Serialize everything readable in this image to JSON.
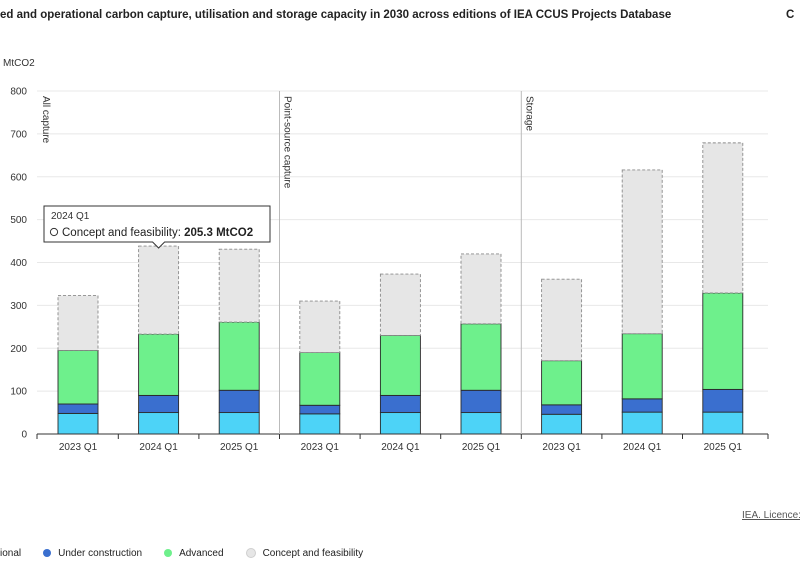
{
  "header": {
    "title": "ed and operational carbon capture, utilisation and storage capacity in 2030 across editions of IEA CCUS Projects Database",
    "corner_text": "C"
  },
  "footer": {
    "credit": "IEA. Licence:"
  },
  "tooltip": {
    "period": "2024 Q1",
    "label": "Concept and feasibility:",
    "value": "205.3 MtCO2"
  },
  "colors": {
    "operational": "#4dd3f7",
    "under_construction": "#3a6fcf",
    "advanced": "#6ef08c",
    "concept": "#e6e6e6"
  },
  "chart_data": {
    "type": "bar",
    "stacked": true,
    "ylabel": "MtCO2",
    "ylim": [
      0,
      800
    ],
    "yticks": [
      0,
      100,
      200,
      300,
      400,
      500,
      600,
      700,
      800
    ],
    "grid": true,
    "groups": [
      {
        "label": "All capture",
        "categories": [
          "2023 Q1",
          "2024 Q1",
          "2025 Q1"
        ]
      },
      {
        "label": "Point-source capture",
        "categories": [
          "2023 Q1",
          "2024 Q1",
          "2025 Q1"
        ]
      },
      {
        "label": "Storage",
        "categories": [
          "2023 Q1",
          "2024 Q1",
          "2025 Q1"
        ]
      }
    ],
    "series": [
      {
        "name": "ional",
        "key": "operational",
        "values": [
          48,
          50,
          50,
          47,
          50,
          50,
          46,
          51,
          51
        ]
      },
      {
        "name": "Under construction",
        "key": "under_construction",
        "values": [
          22,
          40,
          52,
          20,
          40,
          52,
          22,
          31,
          53
        ]
      },
      {
        "name": "Advanced",
        "key": "advanced",
        "values": [
          125,
          143,
          159,
          123,
          140,
          155,
          103,
          152,
          225
        ]
      },
      {
        "name": "Concept and feasibility",
        "key": "concept",
        "values": [
          128,
          205.3,
          170,
          120,
          143,
          163,
          190,
          382,
          350
        ]
      }
    ]
  }
}
